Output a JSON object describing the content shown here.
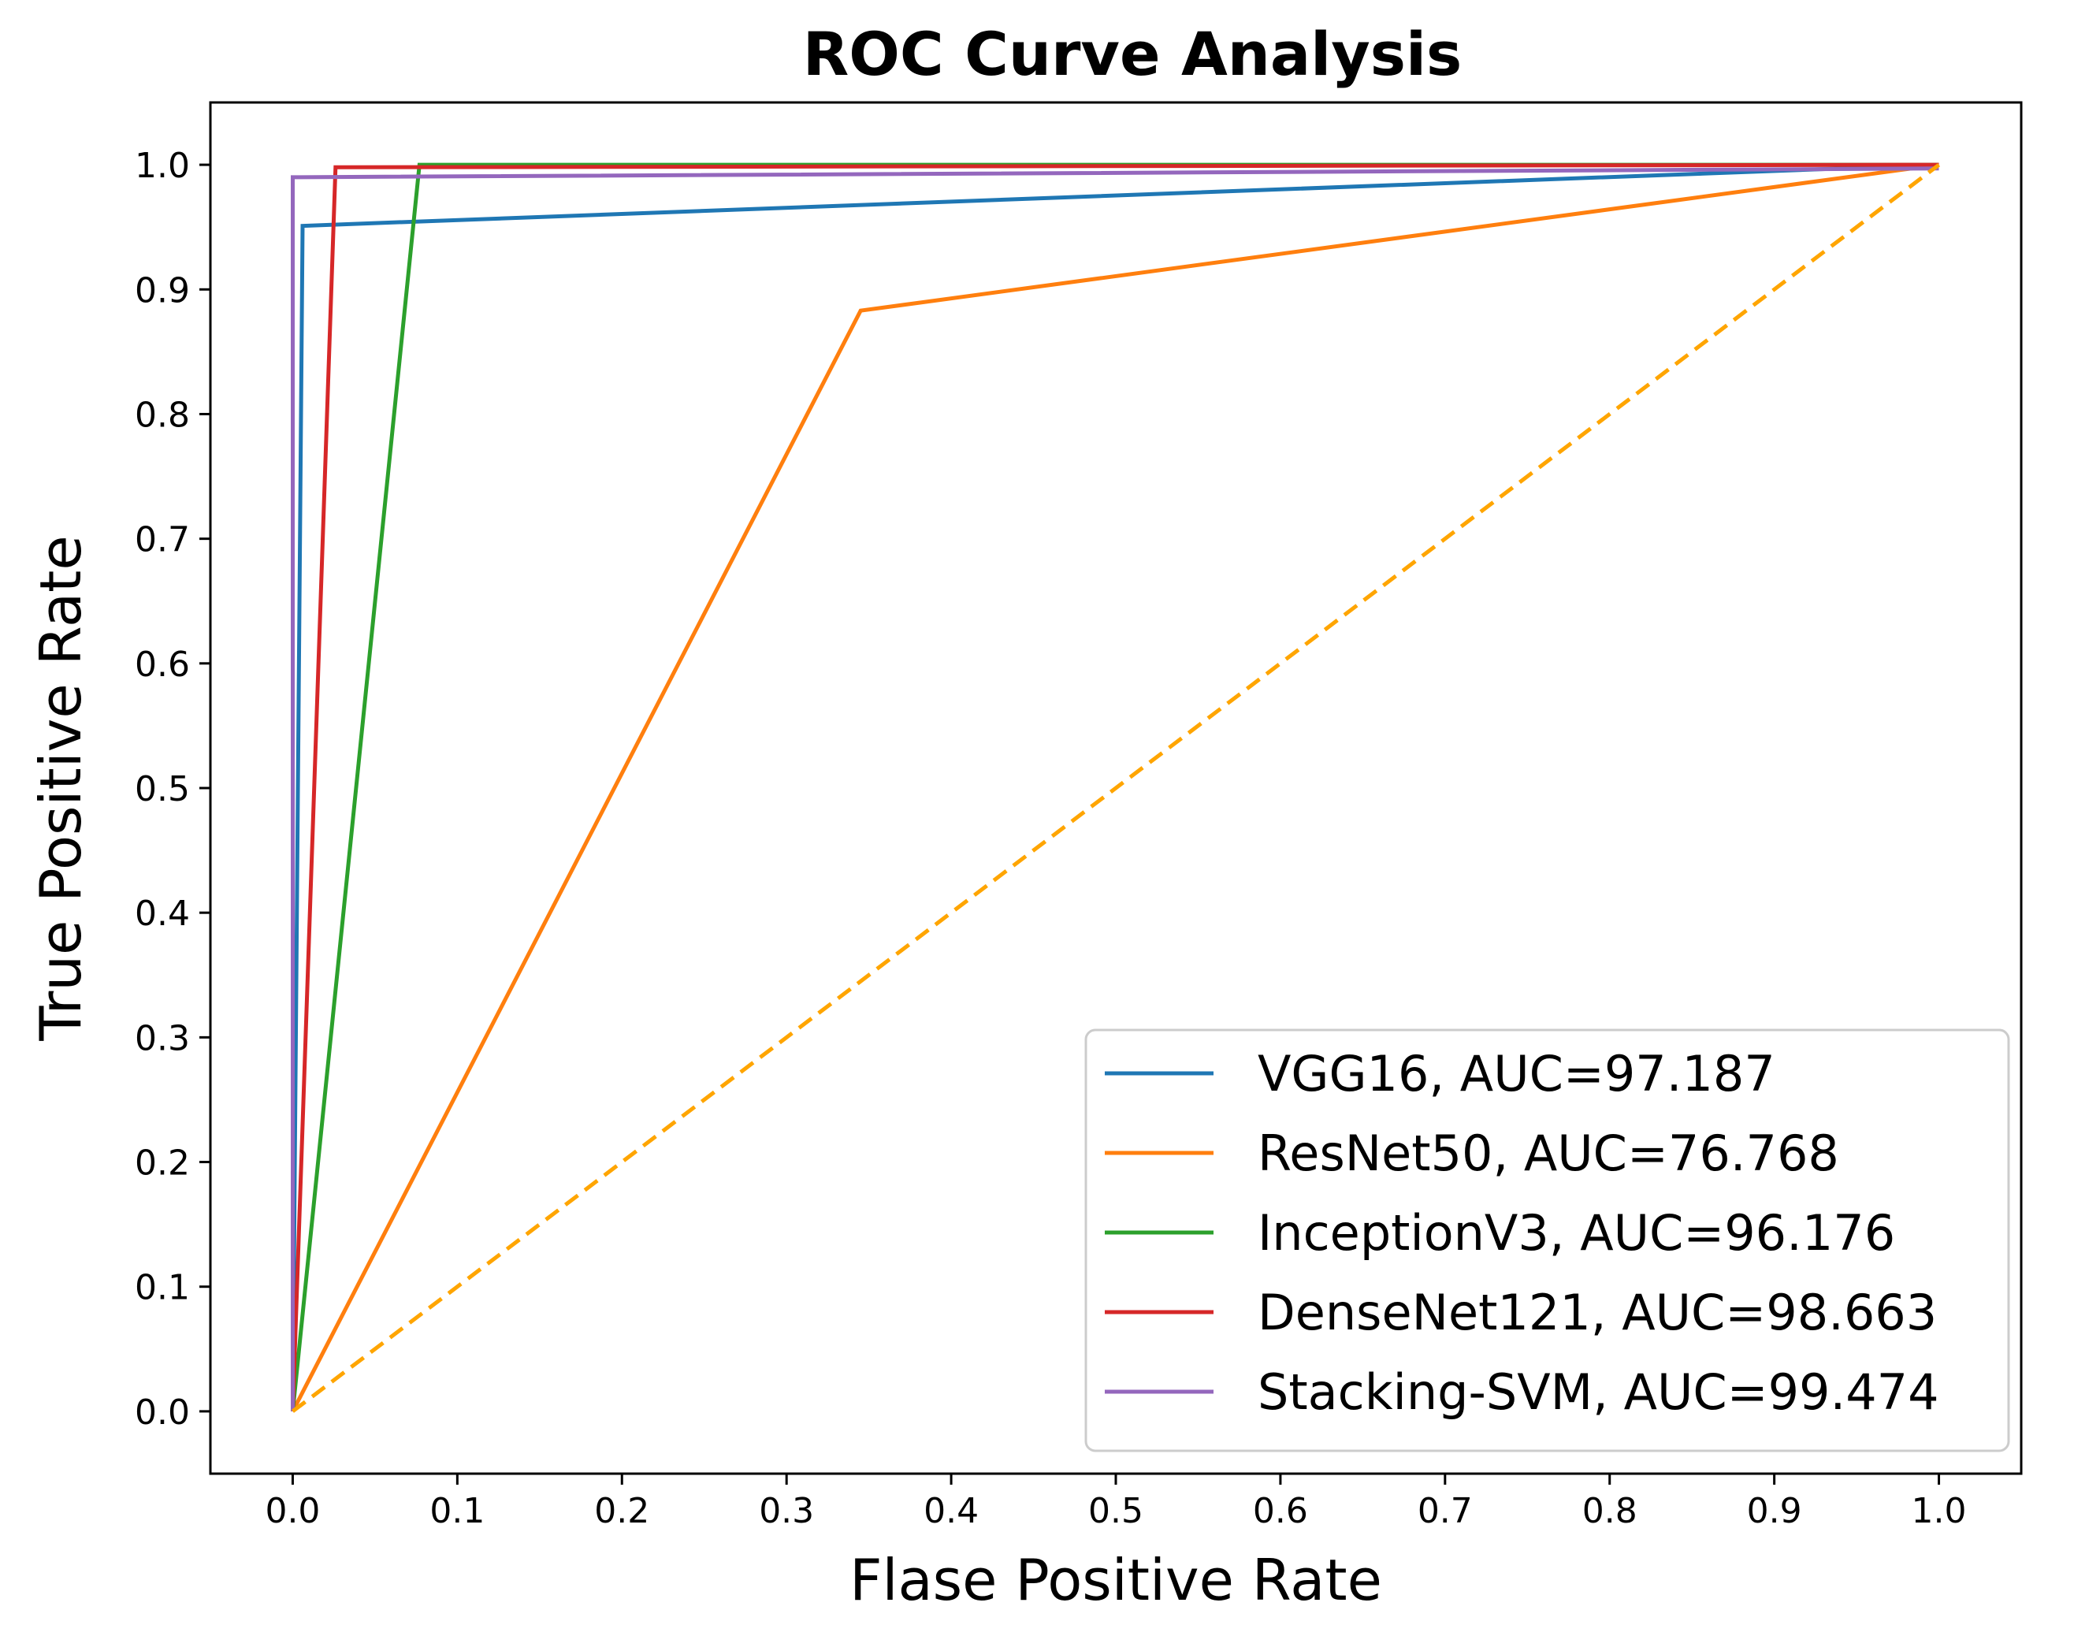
{
  "chart_data": {
    "type": "line",
    "title": "ROC Curve Analysis",
    "xlabel": "Flase Positive Rate",
    "ylabel": "True Positive Rate",
    "xlim": [
      -0.05,
      1.05
    ],
    "ylim": [
      -0.05,
      1.05
    ],
    "xticks": [
      "0.0",
      "0.1",
      "0.2",
      "0.3",
      "0.4",
      "0.5",
      "0.6",
      "0.7",
      "0.8",
      "0.9",
      "1.0"
    ],
    "yticks": [
      "0.0",
      "0.1",
      "0.2",
      "0.3",
      "0.4",
      "0.5",
      "0.6",
      "0.7",
      "0.8",
      "0.9",
      "1.0"
    ],
    "grid": false,
    "legend_position": "lower-right",
    "series": [
      {
        "name": "VGG16, AUC=97.187",
        "color": "#1f77b4",
        "x": [
          0,
          0.006,
          1
        ],
        "y": [
          0,
          0.951,
          1
        ]
      },
      {
        "name": "ResNet50, AUC=76.768",
        "color": "#ff7f0e",
        "x": [
          0,
          0.345,
          1
        ],
        "y": [
          0,
          0.883,
          1
        ]
      },
      {
        "name": "InceptionV3, AUC=96.176",
        "color": "#2ca02c",
        "x": [
          0,
          0.077,
          1
        ],
        "y": [
          0,
          1.0,
          1
        ]
      },
      {
        "name": "DenseNet121, AUC=98.663",
        "color": "#d62728",
        "x": [
          0,
          0.026,
          1
        ],
        "y": [
          0,
          0.998,
          1
        ]
      },
      {
        "name": "Stacking-SVM, AUC=99.474",
        "color": "#9467bd",
        "x": [
          0,
          0,
          1
        ],
        "y": [
          0,
          0.99,
          0.997
        ]
      }
    ],
    "reference_line": {
      "color": "#ffa500",
      "style": "dashed",
      "x": [
        0,
        1
      ],
      "y": [
        0,
        1
      ]
    }
  }
}
